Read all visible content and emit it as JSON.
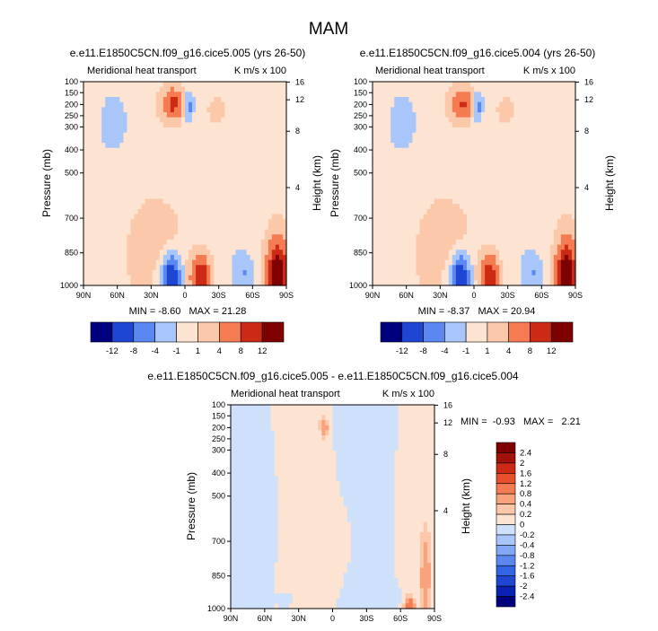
{
  "figure_title": "MAM",
  "colors": {
    "scale": [
      "#00007f",
      "#0a22b4",
      "#1e46d2",
      "#3264e6",
      "#5a88f0",
      "#82a8f5",
      "#a8c6fa",
      "#cfe0fb",
      "#fde4d2",
      "#fbc9aa",
      "#f8a37c",
      "#f47b52",
      "#e8502d",
      "#cc2a15",
      "#a3120a",
      "#7f0000"
    ]
  },
  "chart_data": [
    {
      "type": "heatmap",
      "title": "e.e11.E1850C5CN.f09_g16.cice5.005 (yrs 26-50)",
      "left_title": "Meridional heat transport",
      "units_label": "K m/s x 100",
      "ylabel": "Pressure (mb)",
      "ylabel_right": "Height (km)",
      "x_ticks": [
        "90N",
        "60N",
        "30N",
        "0",
        "30S",
        "60S",
        "90S"
      ],
      "x_values": [
        90,
        60,
        30,
        0,
        -30,
        -60,
        -90
      ],
      "y_ticks": [
        100,
        150,
        200,
        250,
        300,
        400,
        500,
        700,
        850,
        1000
      ],
      "height_ticks": [
        16,
        12,
        8,
        4
      ],
      "ylim": [
        100,
        1000
      ],
      "stats": "MIN = -8.60   MAX = 21.28",
      "levels": [
        -12,
        -8,
        -4,
        -1,
        1,
        4,
        8,
        12
      ],
      "features": [
        {
          "lat": 10,
          "p": 200,
          "lat_w": 9,
          "p_w": 70,
          "amp": 9
        },
        {
          "lat": -3,
          "p": 210,
          "lat_w": 4,
          "p_w": 60,
          "amp": -6
        },
        {
          "lat": -28,
          "p": 230,
          "lat_w": 9,
          "p_w": 75,
          "amp": 3
        },
        {
          "lat": 60,
          "p": 280,
          "lat_w": 14,
          "p_w": 140,
          "amp": -1.6
        },
        {
          "lat": 12,
          "p": 960,
          "lat_w": 8,
          "p_w": 100,
          "amp": -12
        },
        {
          "lat": -14,
          "p": 960,
          "lat_w": 9,
          "p_w": 100,
          "amp": 12
        },
        {
          "lat": 40,
          "p": 950,
          "lat_w": 8,
          "p_w": 110,
          "amp": 3
        },
        {
          "lat": -52,
          "p": 950,
          "lat_w": 8,
          "p_w": 90,
          "amp": -4
        },
        {
          "lat": -82,
          "p": 940,
          "lat_w": 9,
          "p_w": 140,
          "amp": 16
        },
        {
          "lat": 25,
          "p": 780,
          "lat_w": 28,
          "p_w": 140,
          "amp": 1.6
        },
        {
          "lat": -60,
          "p": 500,
          "lat_w": 18,
          "p_w": 300,
          "amp": -0.5
        }
      ]
    },
    {
      "type": "heatmap",
      "title": "e.e11.E1850C5CN.f09_g16.cice5.004 (yrs 26-50)",
      "left_title": "Meridional heat transport",
      "units_label": "K m/s x 100",
      "ylabel": "Pressure (mb)",
      "ylabel_right": "Height (km)",
      "x_ticks": [
        "90N",
        "60N",
        "30N",
        "0",
        "30S",
        "60S",
        "90S"
      ],
      "x_values": [
        90,
        60,
        30,
        0,
        -30,
        -60,
        -90
      ],
      "y_ticks": [
        100,
        150,
        200,
        250,
        300,
        400,
        500,
        700,
        850,
        1000
      ],
      "height_ticks": [
        16,
        12,
        8,
        4
      ],
      "ylim": [
        100,
        1000
      ],
      "stats": "MIN = -8.37   MAX = 20.94",
      "levels": [
        -12,
        -8,
        -4,
        -1,
        1,
        4,
        8,
        12
      ],
      "features": [
        {
          "lat": 10,
          "p": 200,
          "lat_w": 9,
          "p_w": 70,
          "amp": 8.5
        },
        {
          "lat": -3,
          "p": 210,
          "lat_w": 4,
          "p_w": 60,
          "amp": -6
        },
        {
          "lat": -28,
          "p": 230,
          "lat_w": 9,
          "p_w": 75,
          "amp": 3
        },
        {
          "lat": 60,
          "p": 280,
          "lat_w": 14,
          "p_w": 140,
          "amp": -1.6
        },
        {
          "lat": 12,
          "p": 960,
          "lat_w": 8,
          "p_w": 100,
          "amp": -12
        },
        {
          "lat": -14,
          "p": 960,
          "lat_w": 9,
          "p_w": 100,
          "amp": 11.5
        },
        {
          "lat": 40,
          "p": 950,
          "lat_w": 8,
          "p_w": 110,
          "amp": 3
        },
        {
          "lat": -52,
          "p": 950,
          "lat_w": 8,
          "p_w": 90,
          "amp": -4
        },
        {
          "lat": -82,
          "p": 940,
          "lat_w": 9,
          "p_w": 140,
          "amp": 15
        },
        {
          "lat": 25,
          "p": 780,
          "lat_w": 28,
          "p_w": 140,
          "amp": 1.6
        },
        {
          "lat": -60,
          "p": 500,
          "lat_w": 18,
          "p_w": 300,
          "amp": -0.5
        }
      ]
    },
    {
      "type": "heatmap",
      "title": "e.e11.E1850C5CN.f09_g16.cice5.005 - e.e11.E1850C5CN.f09_g16.cice5.004",
      "left_title": "Meridional heat transport",
      "units_label": "K m/s x 100",
      "ylabel": "Pressure (mb)",
      "ylabel_right": "Height (km)",
      "x_ticks": [
        "90N",
        "60N",
        "30N",
        "0",
        "30S",
        "60S",
        "90S"
      ],
      "x_values": [
        90,
        60,
        30,
        0,
        -30,
        -60,
        -90
      ],
      "y_ticks": [
        100,
        150,
        200,
        250,
        300,
        400,
        500,
        700,
        850,
        1000
      ],
      "height_ticks": [
        16,
        12,
        8,
        4
      ],
      "ylim": [
        100,
        1000
      ],
      "stats": "MIN =  -0.93   MAX =   2.21",
      "levels": [
        -2.4,
        -2,
        -1.6,
        -1.2,
        -0.8,
        -0.4,
        -0.2,
        0,
        0.2,
        0.4,
        0.8,
        1.2,
        1.6,
        2,
        2.4
      ],
      "features": [
        {
          "lat": 7,
          "p": 200,
          "lat_w": 4,
          "p_w": 45,
          "amp": 0.5
        },
        {
          "lat": 60,
          "p": 600,
          "lat_w": 14,
          "p_w": 350,
          "amp": -0.1
        },
        {
          "lat": -20,
          "p": 700,
          "lat_w": 25,
          "p_w": 300,
          "amp": 0.1
        },
        {
          "lat": -82,
          "p": 850,
          "lat_w": 4,
          "p_w": 160,
          "amp": 0.6
        },
        {
          "lat": -68,
          "p": 980,
          "lat_w": 4,
          "p_w": 30,
          "amp": 1.2
        },
        {
          "lat": 40,
          "p": 960,
          "lat_w": 8,
          "p_w": 50,
          "amp": -0.15
        },
        {
          "lat": -50,
          "p": 950,
          "lat_w": 8,
          "p_w": 60,
          "amp": -0.15
        }
      ]
    }
  ],
  "colorbars": {
    "top": {
      "labels": [
        "-12",
        "-8",
        "-4",
        "-1",
        "1",
        "4",
        "8",
        "12"
      ]
    },
    "side": {
      "labels": [
        "2.4",
        "2",
        "1.6",
        "1.2",
        "0.8",
        "0.4",
        "0.2",
        "0",
        "-0.2",
        "-0.4",
        "-0.8",
        "-1.2",
        "-1.6",
        "-2",
        "-2.4"
      ]
    }
  }
}
